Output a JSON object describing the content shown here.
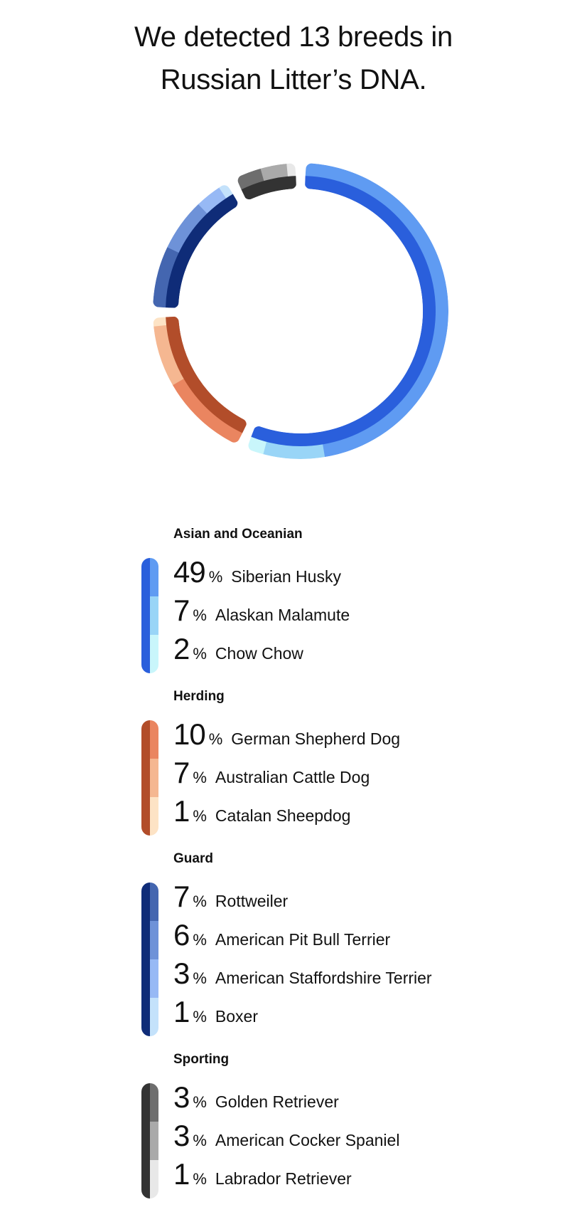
{
  "header": {
    "title": "We detected 13 breeds in Russian Litter’s DNA."
  },
  "chart_data": {
    "type": "donut",
    "title": "We detected 13 breeds in Russian Litter’s DNA.",
    "unit": "%",
    "groups": [
      {
        "name": "Asian and Oceanian",
        "color": "#2a5fdc",
        "breeds": [
          {
            "name": "Siberian Husky",
            "value": 49,
            "color": "#5f9bf2"
          },
          {
            "name": "Alaskan Malamute",
            "value": 7,
            "color": "#99d5f7"
          },
          {
            "name": "Chow Chow",
            "value": 2,
            "color": "#c9f6fb"
          }
        ]
      },
      {
        "name": "Herding",
        "color": "#b24d2a",
        "breeds": [
          {
            "name": "German Shepherd Dog",
            "value": 10,
            "color": "#ea8560"
          },
          {
            "name": "Australian Cattle Dog",
            "value": 7,
            "color": "#f5b791"
          },
          {
            "name": "Catalan Sheepdog",
            "value": 1,
            "color": "#fde3c5"
          }
        ]
      },
      {
        "name": "Guard",
        "color": "#0f2c78",
        "breeds": [
          {
            "name": "Rottweiler",
            "value": 7,
            "color": "#4466b0"
          },
          {
            "name": "American Pit Bull Terrier",
            "value": 6,
            "color": "#6e92d8"
          },
          {
            "name": "American Staffordshire Terrier",
            "value": 3,
            "color": "#97b9f5"
          },
          {
            "name": "Boxer",
            "value": 1,
            "color": "#c4e2fb"
          }
        ]
      },
      {
        "name": "Sporting",
        "color": "#333333",
        "breeds": [
          {
            "name": "Golden Retriever",
            "value": 3,
            "color": "#6e6e6e"
          },
          {
            "name": "American Cocker Spaniel",
            "value": 3,
            "color": "#aaaaaa"
          },
          {
            "name": "Labrador Retriever",
            "value": 1,
            "color": "#e8e8e8"
          }
        ]
      }
    ]
  }
}
